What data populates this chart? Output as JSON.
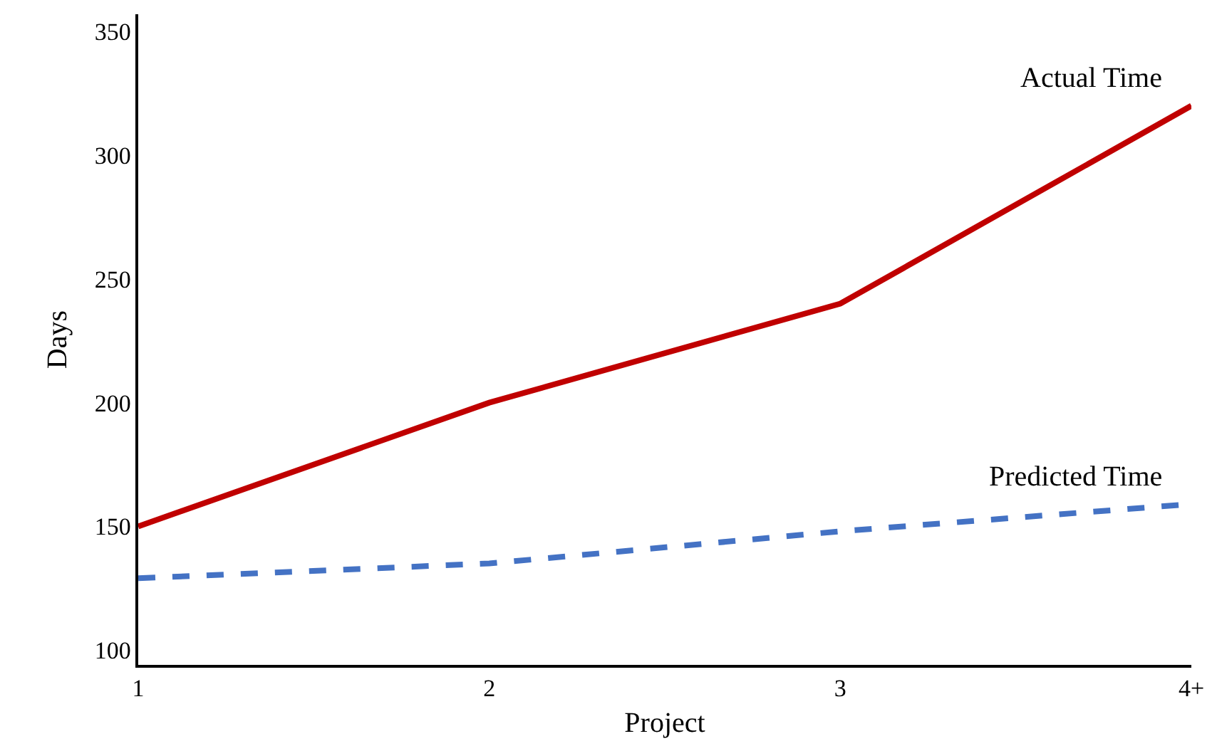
{
  "chart_data": {
    "type": "line",
    "xlabel": "Project",
    "ylabel": "Days",
    "categories": [
      "1",
      "2",
      "3",
      "4+"
    ],
    "series": [
      {
        "name": "Actual Time",
        "color": "#c00000",
        "line_style": "solid",
        "values": [
          150,
          200,
          240,
          320
        ]
      },
      {
        "name": "Predicted Time",
        "color": "#4472c4",
        "line_style": "dashed",
        "values": [
          129,
          135,
          148,
          159
        ]
      }
    ],
    "ylim": [
      94,
      357
    ],
    "yticks": [
      100,
      150,
      200,
      250,
      300,
      350
    ],
    "grid": false,
    "legend": false,
    "marker": "none"
  }
}
